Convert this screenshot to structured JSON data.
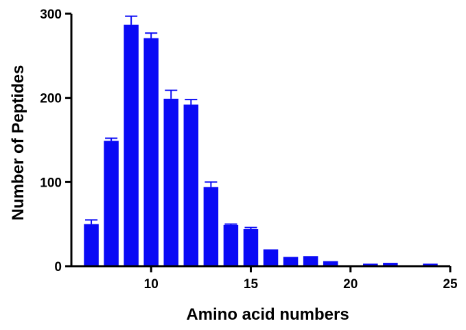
{
  "chart_data": {
    "type": "bar",
    "title": "",
    "xlabel": "Amino acid numbers",
    "ylabel": "Number of Peptides",
    "xlim": [
      6,
      25
    ],
    "ylim": [
      0,
      300
    ],
    "x_ticks": [
      10,
      15,
      20,
      25
    ],
    "y_ticks": [
      0,
      100,
      200,
      300
    ],
    "grid": false,
    "bar_color": "#0a0af5",
    "x": [
      7,
      8,
      9,
      10,
      11,
      12,
      13,
      14,
      15,
      16,
      17,
      18,
      19,
      20,
      21,
      22,
      23,
      24
    ],
    "values": [
      50,
      149,
      287,
      271,
      199,
      192,
      94,
      49,
      44,
      20,
      11,
      12,
      6,
      1,
      3,
      4,
      1,
      3
    ],
    "error_upper": [
      55,
      152,
      297,
      277,
      209,
      198,
      100,
      50,
      46,
      20,
      11,
      12,
      6,
      1,
      3,
      4,
      1,
      3
    ]
  }
}
